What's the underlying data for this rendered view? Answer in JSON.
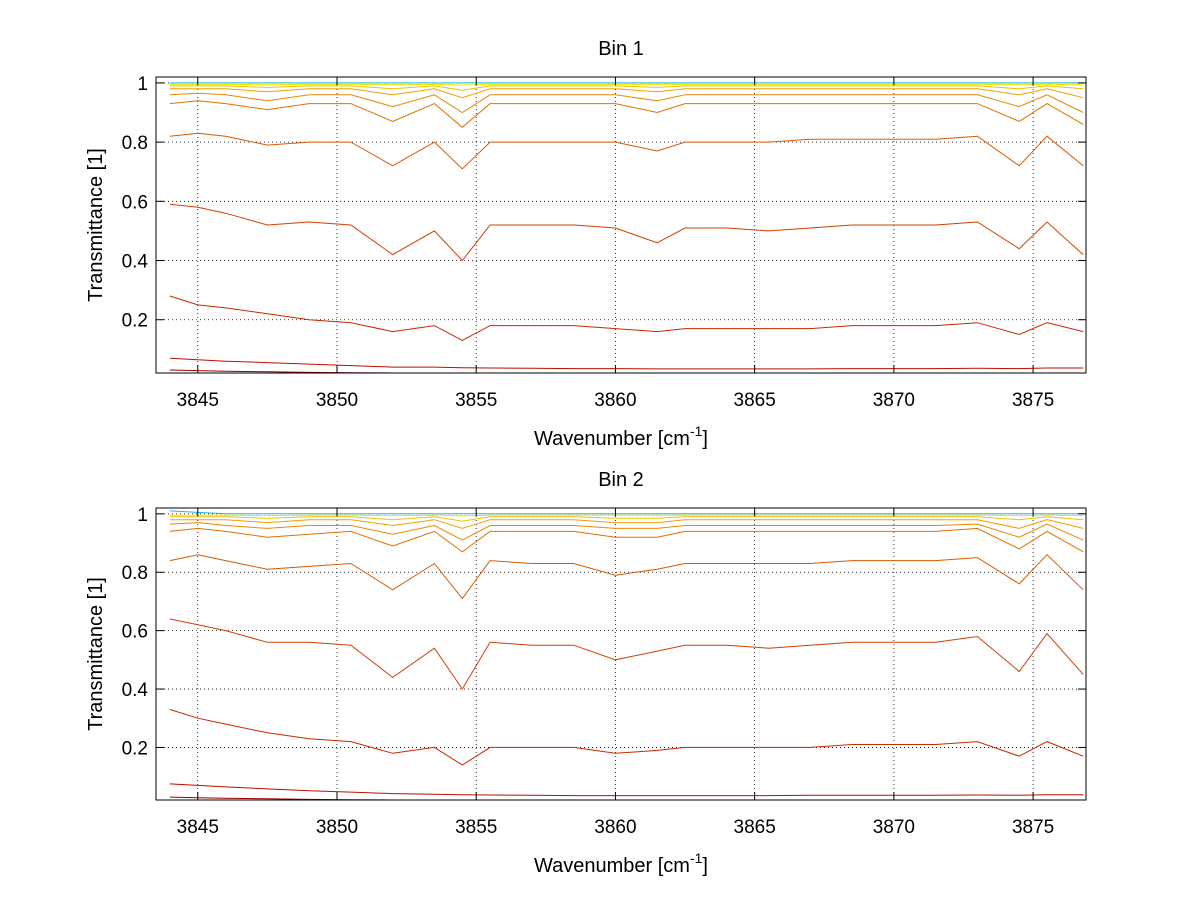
{
  "chart_data": [
    {
      "type": "line",
      "title": "Bin 1",
      "xlabel": "Wavenumber [cm",
      "xlabel_sup": "-1",
      "xlabel_suffix": "]",
      "ylabel": "Transmittance [1]",
      "xlim": [
        3843.5,
        3876.9
      ],
      "ylim": [
        0.02,
        1.02
      ],
      "xticks": [
        3845,
        3850,
        3855,
        3860,
        3865,
        3870,
        3875
      ],
      "yticks": [
        0.2,
        0.4,
        0.6,
        0.8,
        1
      ],
      "ytick_labels": [
        "0.2",
        "0.4",
        "0.6",
        "0.8",
        "1"
      ],
      "grid": true,
      "line_x": [
        3844,
        3845,
        3846,
        3847.5,
        3849,
        3850.5,
        3852,
        3853.5,
        3854.5,
        3855.5,
        3857,
        3858.5,
        3860,
        3861.5,
        3862.5,
        3864,
        3865.5,
        3867,
        3868.5,
        3870,
        3871.5,
        3873,
        3874.5,
        3875.5,
        3876.8
      ],
      "lines": [
        {
          "color": "#1fb8e8",
          "y": [
            1.0,
            1.0,
            1.0,
            1.0,
            1.0,
            1.0,
            1.0,
            1.0,
            1.0,
            1.0,
            1.0,
            1.0,
            1.0,
            1.0,
            1.0,
            1.0,
            1.0,
            1.0,
            1.0,
            1.0,
            1.0,
            1.0,
            1.0,
            1.0,
            1.0
          ]
        },
        {
          "color": "#e8e800",
          "y": [
            0.995,
            0.995,
            0.995,
            0.994,
            0.995,
            0.995,
            0.994,
            0.995,
            0.993,
            0.995,
            0.995,
            0.995,
            0.995,
            0.995,
            0.995,
            0.995,
            0.995,
            0.995,
            0.995,
            0.995,
            0.995,
            0.995,
            0.994,
            0.995,
            0.994
          ]
        },
        {
          "color": "#f0c000",
          "y": [
            0.99,
            0.99,
            0.99,
            0.985,
            0.99,
            0.99,
            0.98,
            0.99,
            0.975,
            0.99,
            0.99,
            0.99,
            0.99,
            0.985,
            0.99,
            0.99,
            0.99,
            0.99,
            0.99,
            0.99,
            0.99,
            0.99,
            0.98,
            0.99,
            0.98
          ]
        },
        {
          "color": "#f0a000",
          "y": [
            0.98,
            0.98,
            0.98,
            0.97,
            0.98,
            0.98,
            0.96,
            0.98,
            0.95,
            0.98,
            0.98,
            0.98,
            0.98,
            0.97,
            0.98,
            0.98,
            0.98,
            0.98,
            0.98,
            0.98,
            0.98,
            0.98,
            0.96,
            0.98,
            0.95
          ]
        },
        {
          "color": "#e88a00",
          "y": [
            0.96,
            0.965,
            0.96,
            0.94,
            0.96,
            0.96,
            0.92,
            0.96,
            0.9,
            0.96,
            0.96,
            0.96,
            0.96,
            0.94,
            0.96,
            0.96,
            0.96,
            0.96,
            0.96,
            0.96,
            0.96,
            0.96,
            0.92,
            0.96,
            0.9
          ]
        },
        {
          "color": "#e07000",
          "y": [
            0.93,
            0.94,
            0.93,
            0.91,
            0.93,
            0.93,
            0.87,
            0.93,
            0.85,
            0.93,
            0.93,
            0.93,
            0.93,
            0.9,
            0.93,
            0.93,
            0.93,
            0.93,
            0.93,
            0.93,
            0.93,
            0.93,
            0.87,
            0.93,
            0.86
          ]
        },
        {
          "color": "#d85a00",
          "y": [
            0.82,
            0.83,
            0.82,
            0.79,
            0.8,
            0.8,
            0.72,
            0.8,
            0.71,
            0.8,
            0.8,
            0.8,
            0.8,
            0.77,
            0.8,
            0.8,
            0.8,
            0.81,
            0.81,
            0.81,
            0.81,
            0.82,
            0.72,
            0.82,
            0.72
          ]
        },
        {
          "color": "#d04000",
          "y": [
            0.59,
            0.58,
            0.56,
            0.52,
            0.53,
            0.52,
            0.42,
            0.5,
            0.4,
            0.52,
            0.52,
            0.52,
            0.51,
            0.46,
            0.51,
            0.51,
            0.5,
            0.51,
            0.52,
            0.52,
            0.52,
            0.53,
            0.44,
            0.53,
            0.42
          ]
        },
        {
          "color": "#c82800",
          "y": [
            0.28,
            0.25,
            0.24,
            0.22,
            0.2,
            0.19,
            0.16,
            0.18,
            0.13,
            0.18,
            0.18,
            0.18,
            0.17,
            0.16,
            0.17,
            0.17,
            0.17,
            0.17,
            0.18,
            0.18,
            0.18,
            0.19,
            0.15,
            0.19,
            0.16
          ]
        },
        {
          "color": "#b81000",
          "y": [
            0.07,
            0.065,
            0.06,
            0.055,
            0.05,
            0.045,
            0.04,
            0.04,
            0.038,
            0.037,
            0.036,
            0.035,
            0.035,
            0.034,
            0.034,
            0.034,
            0.034,
            0.034,
            0.035,
            0.035,
            0.035,
            0.036,
            0.035,
            0.037,
            0.037
          ]
        },
        {
          "color": "#a00000",
          "y": [
            0.03,
            0.028,
            0.026,
            0.024,
            0.022,
            0.021,
            0.02,
            0.02,
            0.02,
            0.02,
            0.02,
            0.02,
            0.02,
            0.02,
            0.02,
            0.02,
            0.02,
            0.02,
            0.02,
            0.02,
            0.02,
            0.02,
            0.02,
            0.02,
            0.02
          ]
        }
      ]
    },
    {
      "type": "line",
      "title": "Bin 2",
      "xlabel": "Wavenumber [cm",
      "xlabel_sup": "-1",
      "xlabel_suffix": "]",
      "ylabel": "Transmittance [1]",
      "xlim": [
        3843.5,
        3876.9
      ],
      "ylim": [
        0.02,
        1.02
      ],
      "xticks": [
        3845,
        3850,
        3855,
        3860,
        3865,
        3870,
        3875
      ],
      "yticks": [
        0.2,
        0.4,
        0.6,
        0.8,
        1
      ],
      "ytick_labels": [
        "0.2",
        "0.4",
        "0.6",
        "0.8",
        "1"
      ],
      "grid": true,
      "line_x": [
        3844,
        3845,
        3846,
        3847.5,
        3849,
        3850.5,
        3852,
        3853.5,
        3854.5,
        3855.5,
        3857,
        3858.5,
        3860,
        3861.5,
        3862.5,
        3864,
        3865.5,
        3867,
        3868.5,
        3870,
        3871.5,
        3873,
        3874.5,
        3875.5,
        3876.8
      ],
      "lines": [
        {
          "color": "#1fb8e8",
          "y": [
            1.01,
            1.005,
            1.0,
            1.0,
            1.0,
            1.0,
            1.0,
            1.0,
            1.0,
            1.0,
            1.0,
            1.0,
            1.0,
            1.0,
            1.0,
            1.0,
            1.0,
            1.0,
            1.0,
            1.0,
            1.0,
            1.0,
            1.0,
            1.0,
            1.0
          ]
        },
        {
          "color": "#e8e800",
          "y": [
            0.995,
            0.995,
            0.995,
            0.994,
            0.995,
            0.995,
            0.994,
            0.995,
            0.993,
            0.995,
            0.995,
            0.995,
            0.995,
            0.995,
            0.995,
            0.995,
            0.995,
            0.995,
            0.995,
            0.995,
            0.995,
            0.995,
            0.994,
            0.995,
            0.994
          ]
        },
        {
          "color": "#f0c000",
          "y": [
            0.99,
            0.99,
            0.99,
            0.985,
            0.99,
            0.99,
            0.98,
            0.99,
            0.975,
            0.99,
            0.99,
            0.99,
            0.985,
            0.985,
            0.99,
            0.99,
            0.99,
            0.99,
            0.99,
            0.99,
            0.99,
            0.99,
            0.98,
            0.99,
            0.98
          ]
        },
        {
          "color": "#f0a000",
          "y": [
            0.98,
            0.98,
            0.98,
            0.97,
            0.98,
            0.98,
            0.96,
            0.98,
            0.95,
            0.98,
            0.98,
            0.98,
            0.97,
            0.97,
            0.98,
            0.98,
            0.98,
            0.98,
            0.98,
            0.98,
            0.98,
            0.98,
            0.95,
            0.98,
            0.95
          ]
        },
        {
          "color": "#e88a00",
          "y": [
            0.965,
            0.97,
            0.96,
            0.95,
            0.96,
            0.96,
            0.93,
            0.96,
            0.91,
            0.96,
            0.96,
            0.96,
            0.95,
            0.95,
            0.96,
            0.96,
            0.96,
            0.96,
            0.96,
            0.96,
            0.96,
            0.965,
            0.92,
            0.965,
            0.91
          ]
        },
        {
          "color": "#e07000",
          "y": [
            0.94,
            0.95,
            0.94,
            0.92,
            0.93,
            0.94,
            0.89,
            0.94,
            0.87,
            0.94,
            0.94,
            0.94,
            0.92,
            0.92,
            0.94,
            0.94,
            0.94,
            0.94,
            0.94,
            0.94,
            0.94,
            0.95,
            0.88,
            0.94,
            0.87
          ]
        },
        {
          "color": "#d85a00",
          "y": [
            0.84,
            0.86,
            0.84,
            0.81,
            0.82,
            0.83,
            0.74,
            0.83,
            0.71,
            0.84,
            0.83,
            0.83,
            0.79,
            0.81,
            0.83,
            0.83,
            0.83,
            0.83,
            0.84,
            0.84,
            0.84,
            0.85,
            0.76,
            0.86,
            0.74
          ]
        },
        {
          "color": "#d04000",
          "y": [
            0.64,
            0.62,
            0.6,
            0.56,
            0.56,
            0.55,
            0.44,
            0.54,
            0.4,
            0.56,
            0.55,
            0.55,
            0.5,
            0.53,
            0.55,
            0.55,
            0.54,
            0.55,
            0.56,
            0.56,
            0.56,
            0.58,
            0.46,
            0.59,
            0.45
          ]
        },
        {
          "color": "#c82800",
          "y": [
            0.33,
            0.3,
            0.28,
            0.25,
            0.23,
            0.22,
            0.18,
            0.2,
            0.14,
            0.2,
            0.2,
            0.2,
            0.18,
            0.19,
            0.2,
            0.2,
            0.2,
            0.2,
            0.21,
            0.21,
            0.21,
            0.22,
            0.17,
            0.22,
            0.17
          ]
        },
        {
          "color": "#b81000",
          "y": [
            0.075,
            0.07,
            0.065,
            0.058,
            0.052,
            0.047,
            0.042,
            0.04,
            0.038,
            0.037,
            0.036,
            0.035,
            0.035,
            0.035,
            0.035,
            0.035,
            0.035,
            0.036,
            0.036,
            0.036,
            0.036,
            0.037,
            0.036,
            0.038,
            0.038
          ]
        },
        {
          "color": "#a00000",
          "y": [
            0.03,
            0.028,
            0.026,
            0.024,
            0.022,
            0.021,
            0.02,
            0.02,
            0.02,
            0.02,
            0.02,
            0.02,
            0.02,
            0.02,
            0.02,
            0.02,
            0.02,
            0.02,
            0.02,
            0.02,
            0.02,
            0.02,
            0.02,
            0.02,
            0.02
          ]
        }
      ]
    }
  ]
}
